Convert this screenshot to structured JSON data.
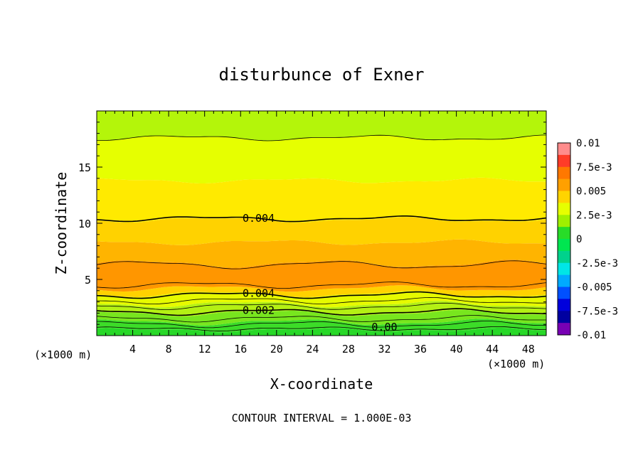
{
  "chart_data": {
    "type": "heatmap",
    "title": "disturbunce of Exner",
    "xlabel": "X-coordinate",
    "ylabel": "Z-coordinate",
    "x_unit": "(×1000 m)",
    "y_unit": "(×1000 m)",
    "xlim": [
      0,
      50
    ],
    "ylim": [
      0,
      20
    ],
    "x_ticks": [
      "4",
      "8",
      "12",
      "16",
      "20",
      "24",
      "28",
      "32",
      "36",
      "40",
      "44",
      "48"
    ],
    "y_ticks": [
      "5",
      "10",
      "15"
    ],
    "footer": "CONTOUR INTERVAL = 1.000E-03",
    "colorbar": {
      "labels": [
        "0.01",
        "7.5e-3",
        "0.005",
        "2.5e-3",
        "0",
        "-2.5e-3",
        "-0.005",
        "-7.5e-3",
        "-0.01"
      ],
      "range": [
        -0.01,
        0.01
      ],
      "colors_high_to_low": [
        "#ff8c8c",
        "#ff3c28",
        "#ff7800",
        "#ffa000",
        "#ffd400",
        "#e6ff00",
        "#a0f000",
        "#28dc28",
        "#00e650",
        "#00d28c",
        "#00e6e6",
        "#00aaff",
        "#0050ff",
        "#0000dc",
        "#0000a0",
        "#7800b4"
      ]
    },
    "bands": [
      {
        "z_bottom": 0.0,
        "z_top": 0.5,
        "value": "-0.001",
        "color": "#28d828"
      },
      {
        "z_bottom": 0.5,
        "z_top": 1.2,
        "value": "0.000",
        "color": "#3cdc28"
      },
      {
        "z_bottom": 1.2,
        "z_top": 2.0,
        "value": "0.001",
        "color": "#78e61e"
      },
      {
        "z_bottom": 2.0,
        "z_top": 2.8,
        "value": "0.002",
        "color": "#b4f014"
      },
      {
        "z_bottom": 2.8,
        "z_top": 3.7,
        "value": "0.003",
        "color": "#e6fa00"
      },
      {
        "z_bottom": 3.7,
        "z_top": 4.2,
        "value": "0.004",
        "color": "#ffd200"
      },
      {
        "z_bottom": 4.2,
        "z_top": 6.4,
        "value": "0.005",
        "color": "#ff9600"
      },
      {
        "z_bottom": 6.4,
        "z_top": 8.3,
        "value": "0.0045",
        "color": "#ffb400"
      },
      {
        "z_bottom": 8.3,
        "z_top": 10.3,
        "value": "0.004",
        "color": "#ffd200"
      },
      {
        "z_bottom": 10.3,
        "z_top": 13.8,
        "value": "0.0035",
        "color": "#ffea00"
      },
      {
        "z_bottom": 13.8,
        "z_top": 17.6,
        "value": "0.003",
        "color": "#e6ff00"
      },
      {
        "z_bottom": 17.6,
        "z_top": 20.0,
        "value": "0.0025",
        "color": "#b4f50a"
      }
    ],
    "contours": [
      {
        "z": 0.6,
        "weight": "thin"
      },
      {
        "z": 1.0,
        "weight": "thin",
        "label": "0.00"
      },
      {
        "z": 1.5,
        "weight": "thin"
      },
      {
        "z": 2.1,
        "weight": "thick",
        "label": "0.002"
      },
      {
        "z": 2.6,
        "weight": "thin"
      },
      {
        "z": 3.1,
        "weight": "thin"
      },
      {
        "z": 3.6,
        "weight": "thick",
        "label": "0.004"
      },
      {
        "z": 4.5,
        "weight": "thin"
      },
      {
        "z": 6.3,
        "weight": "thin"
      },
      {
        "z": 10.4,
        "weight": "thick",
        "label": "0.004"
      },
      {
        "z": 17.6,
        "weight": "thin"
      }
    ]
  }
}
